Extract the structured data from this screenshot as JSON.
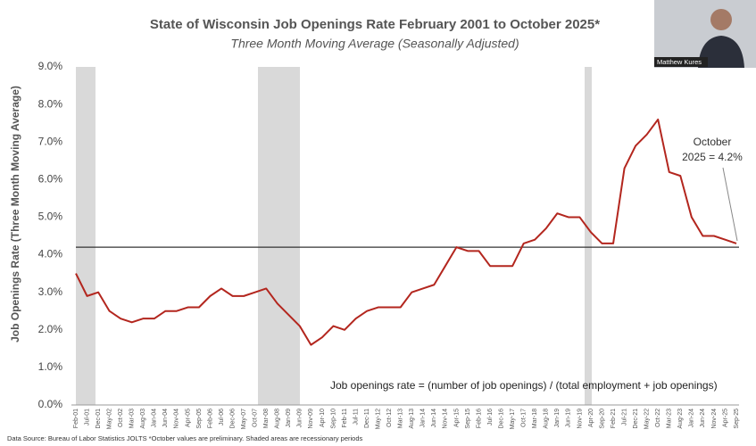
{
  "chart_data": {
    "type": "line",
    "title": "State of Wisconsin Job Openings Rate February 2001 to October 2025*",
    "subtitle": "Three Month Moving Average (Seasonally Adjusted)",
    "y_label": "Job Openings Rate (Three Month Moving Average)",
    "categories": [
      "Feb-01",
      "Jul-01",
      "Dec-01",
      "May-02",
      "Oct-02",
      "Mar-03",
      "Aug-03",
      "Jan-04",
      "Jun-04",
      "Nov-04",
      "Apr-05",
      "Sep-05",
      "Feb-06",
      "Jul-06",
      "Dec-06",
      "May-07",
      "Oct-07",
      "Mar-08",
      "Aug-08",
      "Jan-09",
      "Jun-09",
      "Nov-09",
      "Apr-10",
      "Sep-10",
      "Feb-11",
      "Jul-11",
      "Dec-11",
      "May-12",
      "Oct-12",
      "Mar-13",
      "Aug-13",
      "Jan-14",
      "Jun-14",
      "Nov-14",
      "Apr-15",
      "Sep-15",
      "Feb-16",
      "Jul-16",
      "Dec-16",
      "May-17",
      "Oct-17",
      "Mar-18",
      "Aug-18",
      "Jan-19",
      "Jun-19",
      "Nov-19",
      "Apr-20",
      "Sep-20",
      "Feb-21",
      "Jul-21",
      "Dec-21",
      "May-22",
      "Oct-22",
      "Mar-23",
      "Aug-23",
      "Jan-24",
      "Jun-24",
      "Nov-24",
      "Apr-25",
      "Sep-25"
    ],
    "series": [
      {
        "name": "Job openings rate",
        "color": "#b3261e",
        "values": [
          3.5,
          2.9,
          3.0,
          2.5,
          2.3,
          2.2,
          2.3,
          2.3,
          2.5,
          2.5,
          2.6,
          2.6,
          2.9,
          3.1,
          2.9,
          2.9,
          3.0,
          3.1,
          2.7,
          2.4,
          2.1,
          1.6,
          1.8,
          2.1,
          2.0,
          2.3,
          2.5,
          2.6,
          2.6,
          2.6,
          3.0,
          3.1,
          3.2,
          3.7,
          4.2,
          4.1,
          4.1,
          3.7,
          3.7,
          3.7,
          4.3,
          4.4,
          4.7,
          5.1,
          5.0,
          5.0,
          4.6,
          4.3,
          4.3,
          6.3,
          6.9,
          7.2,
          7.6,
          6.2,
          6.1,
          5.0,
          4.5,
          4.5,
          4.4,
          4.3
        ]
      }
    ],
    "reference_line": 4.2,
    "annotation": [
      "October",
      "2025 = 4.2%"
    ],
    "formula": "Job openings rate =  (number of job openings) / (total employment + job openings)",
    "source": "Data Source: Bureau of Labor Statistics JOLTS  *October values are preliminary. Shaded areas are recessionary periods",
    "speaker": "Matthew Kures",
    "ylim": [
      0,
      9
    ],
    "yticks": [
      {
        "value": 0,
        "label": "0.0%"
      },
      {
        "value": 1,
        "label": "1.0%"
      },
      {
        "value": 2,
        "label": "2.0%"
      },
      {
        "value": 3,
        "label": "3.0%"
      },
      {
        "value": 4,
        "label": "4.0%"
      },
      {
        "value": 5,
        "label": "5.0%"
      },
      {
        "value": 6,
        "label": "6.0%"
      },
      {
        "value": 7,
        "label": "7.0%"
      },
      {
        "value": 8,
        "label": "8.0%"
      },
      {
        "value": 9,
        "label": "9.0%"
      }
    ]
  }
}
